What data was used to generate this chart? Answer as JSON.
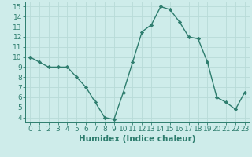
{
  "x": [
    0,
    1,
    2,
    3,
    4,
    5,
    6,
    7,
    8,
    9,
    10,
    11,
    12,
    13,
    14,
    15,
    16,
    17,
    18,
    19,
    20,
    21,
    22,
    23
  ],
  "y": [
    10,
    9.5,
    9,
    9,
    9,
    8,
    7,
    5.5,
    4,
    3.8,
    6.5,
    9.5,
    12.5,
    13.2,
    15,
    14.7,
    13.5,
    12,
    11.8,
    9.5,
    6,
    5.5,
    4.8,
    6.5
  ],
  "line_color": "#2e7d6e",
  "marker": "D",
  "marker_size": 2.2,
  "bg_color": "#ceecea",
  "grid_color": "#b8dbd8",
  "xlabel": "Humidex (Indice chaleur)",
  "ylim": [
    3.5,
    15.5
  ],
  "xlim": [
    -0.5,
    23.5
  ],
  "yticks": [
    4,
    5,
    6,
    7,
    8,
    9,
    10,
    11,
    12,
    13,
    14,
    15
  ],
  "xticks": [
    0,
    1,
    2,
    3,
    4,
    5,
    6,
    7,
    8,
    9,
    10,
    11,
    12,
    13,
    14,
    15,
    16,
    17,
    18,
    19,
    20,
    21,
    22,
    23
  ],
  "tick_fontsize": 6.5,
  "xlabel_fontsize": 7.5
}
